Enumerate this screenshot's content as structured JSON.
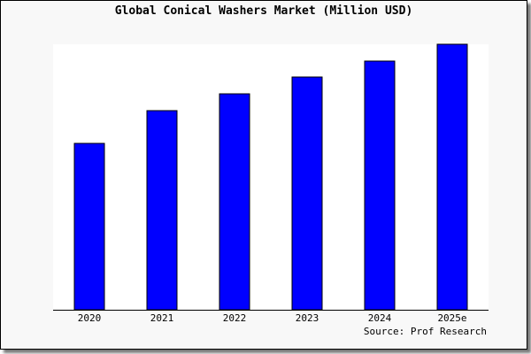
{
  "chart_data": {
    "type": "bar",
    "title": "Global Conical Washers Market (Million USD)",
    "categories": [
      "2020",
      "2021",
      "2022",
      "2023",
      "2024",
      "2025e"
    ],
    "values": [
      188,
      225,
      244,
      263,
      281,
      300
    ],
    "ylim": [
      0,
      300
    ],
    "xlabel": "",
    "ylabel": "",
    "grid": false,
    "bar_color": "#0000ff",
    "source": "Source: Prof Research"
  }
}
